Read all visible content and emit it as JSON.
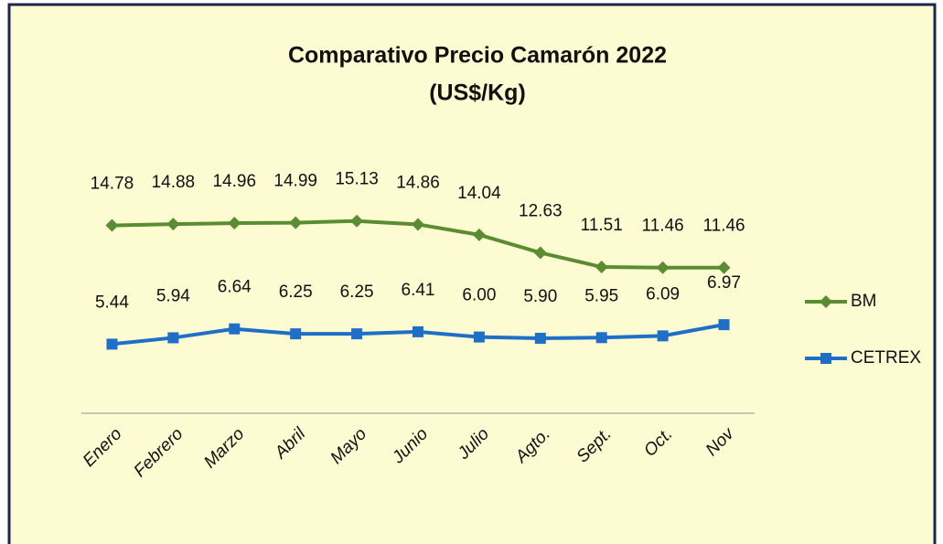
{
  "chart_data": {
    "type": "line",
    "title": "Comparativo Precio Camarón 2022",
    "subtitle": "(US$/Kg)",
    "categories": [
      "Enero",
      "Febrero",
      "Marzo",
      "Abril",
      "Mayo",
      "Junio",
      "Julio",
      "Agto.",
      "Sept.",
      "Oct.",
      "Nov"
    ],
    "series": [
      {
        "name": "BM",
        "color": "#5b8c32",
        "marker": "diamond",
        "values": [
          14.78,
          14.88,
          14.96,
          14.99,
          15.13,
          14.86,
          14.04,
          12.63,
          11.51,
          11.46,
          11.46
        ],
        "value_labels": [
          "14.78",
          "14.88",
          "14.96",
          "14.99",
          "15.13",
          "14.86",
          "14.04",
          "12.63",
          "11.51",
          "11.46",
          "11.46"
        ]
      },
      {
        "name": "CETREX",
        "color": "#1f6fc8",
        "marker": "square",
        "values": [
          5.44,
          5.94,
          6.64,
          6.25,
          6.25,
          6.41,
          6.0,
          5.9,
          5.95,
          6.09,
          6.97
        ],
        "value_labels": [
          "5.44",
          "5.94",
          "6.64",
          "6.25",
          "6.25",
          "6.41",
          "6.00",
          "5.90",
          "5.95",
          "6.09",
          "6.97"
        ]
      }
    ],
    "ylim": [
      0,
      20
    ],
    "legend": "right"
  }
}
